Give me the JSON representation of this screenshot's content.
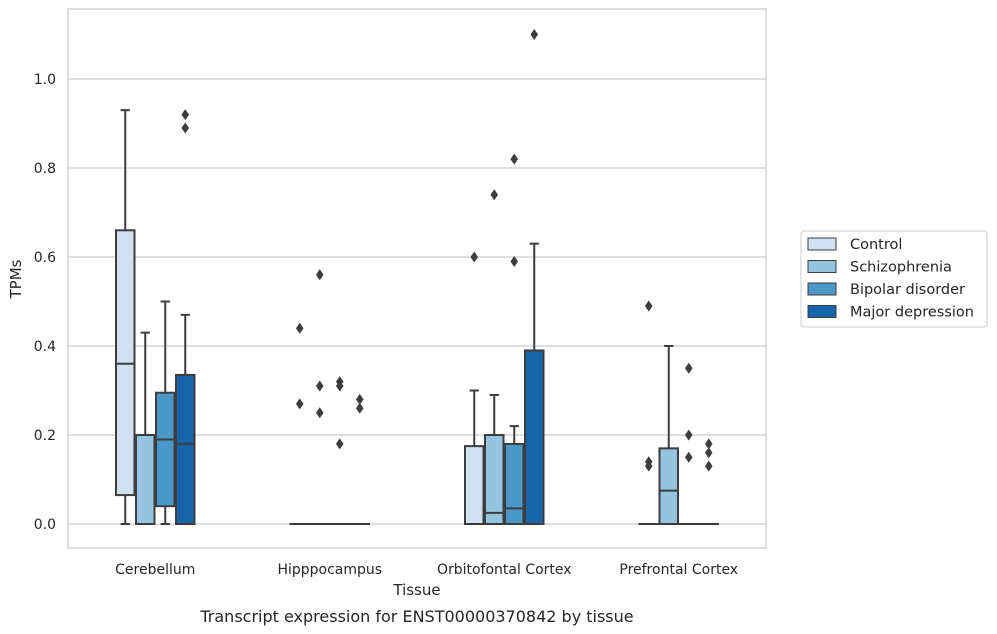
{
  "chart_data": {
    "type": "box",
    "xlabel": "Tissue",
    "ylabel": "TPMs",
    "caption": "Transcript expression for ENST00000370842 by tissue",
    "categories": [
      "Cerebellum",
      "Hipppocampus",
      "Orbitofontal Cortex",
      "Prefrontal Cortex"
    ],
    "ylim": [
      -0.055,
      1.16
    ],
    "yticks": [
      "0.0",
      "0.2",
      "0.4",
      "0.6",
      "0.8",
      "1.0"
    ],
    "grid": true,
    "legend_position": "right",
    "series": [
      {
        "name": "Control",
        "color": "#d0e1f2",
        "boxes": [
          {
            "category": "Cerebellum",
            "q1": 0.065,
            "median": 0.36,
            "q3": 0.66,
            "whisker_low": 0.0,
            "whisker_high": 0.93,
            "outliers": []
          },
          {
            "category": "Hipppocampus",
            "q1": 0.0,
            "median": 0.0,
            "q3": 0.0,
            "whisker_low": 0.0,
            "whisker_high": 0.0,
            "outliers": [
              0.27,
              0.44
            ]
          },
          {
            "category": "Orbitofontal Cortex",
            "q1": 0.0,
            "median": 0.0,
            "q3": 0.175,
            "whisker_low": 0.0,
            "whisker_high": 0.3,
            "outliers": [
              0.6
            ]
          },
          {
            "category": "Prefrontal Cortex",
            "q1": 0.0,
            "median": 0.0,
            "q3": 0.0,
            "whisker_low": 0.0,
            "whisker_high": 0.0,
            "outliers": [
              0.13,
              0.14,
              0.49
            ]
          }
        ]
      },
      {
        "name": "Schizophrenia",
        "color": "#94c4df",
        "boxes": [
          {
            "category": "Cerebellum",
            "q1": 0.0,
            "median": 0.0,
            "q3": 0.2,
            "whisker_low": 0.0,
            "whisker_high": 0.43,
            "outliers": []
          },
          {
            "category": "Hipppocampus",
            "q1": 0.0,
            "median": 0.0,
            "q3": 0.0,
            "whisker_low": 0.0,
            "whisker_high": 0.0,
            "outliers": [
              0.25,
              0.31,
              0.56
            ]
          },
          {
            "category": "Orbitofontal Cortex",
            "q1": 0.0,
            "median": 0.025,
            "q3": 0.2,
            "whisker_low": 0.0,
            "whisker_high": 0.29,
            "outliers": [
              0.74
            ]
          },
          {
            "category": "Prefrontal Cortex",
            "q1": 0.0,
            "median": 0.075,
            "q3": 0.17,
            "whisker_low": 0.0,
            "whisker_high": 0.4,
            "outliers": []
          }
        ]
      },
      {
        "name": "Bipolar disorder",
        "color": "#4a98c9",
        "boxes": [
          {
            "category": "Cerebellum",
            "q1": 0.04,
            "median": 0.19,
            "q3": 0.295,
            "whisker_low": 0.0,
            "whisker_high": 0.5,
            "outliers": []
          },
          {
            "category": "Hipppocampus",
            "q1": 0.0,
            "median": 0.0,
            "q3": 0.0,
            "whisker_low": 0.0,
            "whisker_high": 0.0,
            "outliers": [
              0.18,
              0.31,
              0.32
            ]
          },
          {
            "category": "Orbitofontal Cortex",
            "q1": 0.0,
            "median": 0.035,
            "q3": 0.18,
            "whisker_low": 0.0,
            "whisker_high": 0.22,
            "outliers": [
              0.59,
              0.82
            ]
          },
          {
            "category": "Prefrontal Cortex",
            "q1": 0.0,
            "median": 0.0,
            "q3": 0.0,
            "whisker_low": 0.0,
            "whisker_high": 0.0,
            "outliers": [
              0.15,
              0.2,
              0.35
            ]
          }
        ]
      },
      {
        "name": "Major depression",
        "color": "#1764ab",
        "boxes": [
          {
            "category": "Cerebellum",
            "q1": 0.0,
            "median": 0.18,
            "q3": 0.335,
            "whisker_low": 0.0,
            "whisker_high": 0.47,
            "outliers": [
              0.89,
              0.92
            ]
          },
          {
            "category": "Hipppocampus",
            "q1": 0.0,
            "median": 0.0,
            "q3": 0.0,
            "whisker_low": 0.0,
            "whisker_high": 0.0,
            "outliers": [
              0.26,
              0.28
            ]
          },
          {
            "category": "Orbitofontal Cortex",
            "q1": 0.0,
            "median": 0.0,
            "q3": 0.39,
            "whisker_low": 0.0,
            "whisker_high": 0.63,
            "outliers": [
              1.1
            ]
          },
          {
            "category": "Prefrontal Cortex",
            "q1": 0.0,
            "median": 0.0,
            "q3": 0.0,
            "whisker_low": 0.0,
            "whisker_high": 0.0,
            "outliers": [
              0.13,
              0.16,
              0.18
            ]
          }
        ]
      }
    ]
  }
}
